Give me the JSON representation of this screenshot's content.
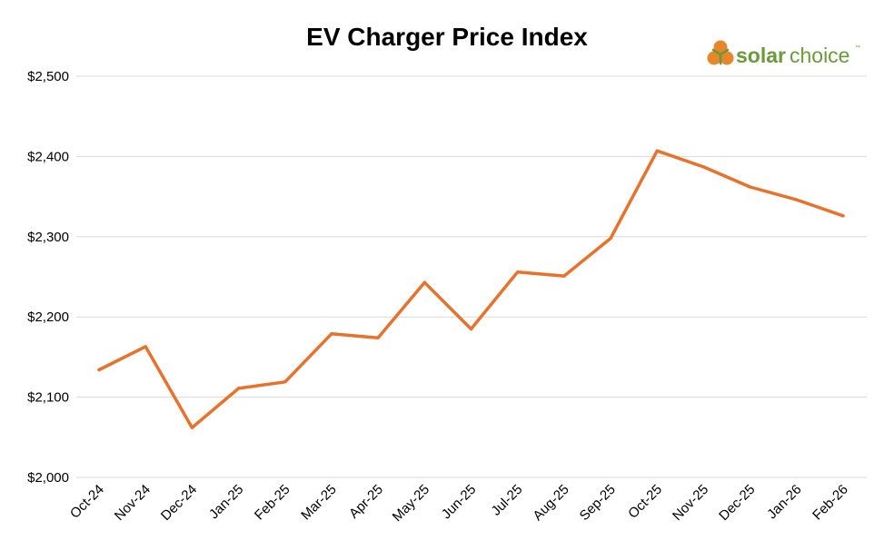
{
  "colors": {
    "series": "#e8722c",
    "grid": "#d9d9d9",
    "logo_green": "#6a9a3a",
    "logo_orange": "#e8862c"
  },
  "logo": {
    "brand_bold": "solar",
    "brand_light": "choice",
    "trademark": "™",
    "icon": "sun-cluster-icon"
  },
  "chart_data": {
    "type": "line",
    "title": "EV Charger Price Index",
    "xlabel": "",
    "ylabel": "",
    "ylim": [
      2000,
      2500
    ],
    "yticks": [
      "$2,000",
      "$2,100",
      "$2,200",
      "$2,300",
      "$2,400",
      "$2,500"
    ],
    "ytick_values": [
      2000,
      2100,
      2200,
      2300,
      2400,
      2500
    ],
    "grid": true,
    "legend": "none",
    "categories": [
      "Oct-24",
      "Nov-24",
      "Dec-24",
      "Jan-25",
      "Feb-25",
      "Mar-25",
      "Apr-25",
      "May-25",
      "Jun-25",
      "Jul-25",
      "Aug-25",
      "Sep-25",
      "Oct-25",
      "Nov-25",
      "Dec-25",
      "Jan-26",
      "Feb-26"
    ],
    "series": [
      {
        "values": [
          2134,
          2163,
          2062,
          2111,
          2119,
          2179,
          2174,
          2243,
          2185,
          2256,
          2251,
          2298,
          2407,
          2387,
          2362,
          2346,
          2326
        ]
      }
    ]
  }
}
